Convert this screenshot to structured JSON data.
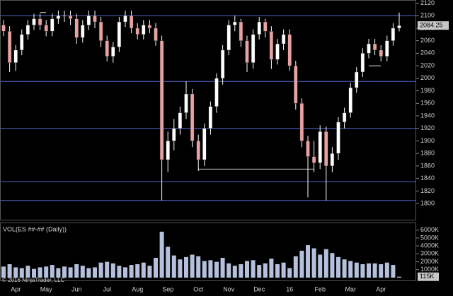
{
  "chart_data": [
    {
      "type": "candlestick",
      "categories": [
        null,
        null,
        "Apr",
        null,
        null,
        null,
        null,
        "May",
        null,
        null,
        null,
        null,
        "Jun",
        null,
        null,
        null,
        null,
        "Jul",
        null,
        null,
        null,
        null,
        "Aug",
        null,
        null,
        null,
        null,
        "Sep",
        null,
        null,
        null,
        null,
        "Oct",
        null,
        null,
        null,
        null,
        "Nov",
        null,
        null,
        null,
        null,
        "Dec",
        null,
        null,
        null,
        null,
        "16",
        null,
        null,
        null,
        null,
        "Feb",
        null,
        null,
        null,
        null,
        "Mar",
        null,
        null,
        null,
        null,
        "Apr",
        null,
        null,
        null
      ],
      "open": [
        2085,
        2075,
        2025,
        2045,
        2070,
        2085,
        2095,
        2085,
        2075,
        2095,
        2100,
        2100,
        2095,
        2065,
        2085,
        2100,
        2090,
        2060,
        2035,
        2050,
        2090,
        2100,
        2080,
        2070,
        2085,
        2080,
        2060,
        1870,
        1900,
        1920,
        1945,
        1975,
        1900,
        1870,
        1920,
        1955,
        2000,
        2045,
        2085,
        2090,
        2060,
        2025,
        2070,
        2090,
        2075,
        2030,
        2055,
        2070,
        2020,
        1960,
        1900,
        1875,
        1865,
        1915,
        1860,
        1880,
        1930,
        1945,
        1985,
        2010,
        2040,
        2055,
        2045,
        2035,
        2060,
        2080
      ],
      "high": [
        2093,
        2083,
        2053,
        2078,
        2093,
        2103,
        2103,
        2093,
        2103,
        2108,
        2108,
        2108,
        2103,
        2093,
        2108,
        2108,
        2098,
        2068,
        2058,
        2098,
        2108,
        2108,
        2088,
        2093,
        2093,
        2088,
        2068,
        1915,
        1935,
        1955,
        1995,
        1983,
        1910,
        1928,
        1963,
        2008,
        2053,
        2093,
        2100,
        2095,
        2068,
        2078,
        2098,
        2095,
        2083,
        2063,
        2078,
        2078,
        2028,
        1968,
        1908,
        1900,
        1925,
        1923,
        1890,
        1938,
        1953,
        1993,
        2018,
        2048,
        2063,
        2063,
        2053,
        2068,
        2088,
        2105
      ],
      "low": [
        2067,
        2010,
        2012,
        2037,
        2062,
        2077,
        2077,
        2067,
        2067,
        2087,
        2090,
        2085,
        2055,
        2057,
        2077,
        2080,
        2050,
        2027,
        2025,
        2042,
        2082,
        2072,
        2062,
        2062,
        2072,
        2052,
        1805,
        1850,
        1885,
        1910,
        1935,
        1890,
        1852,
        1860,
        1910,
        1945,
        1990,
        2037,
        2075,
        2050,
        2010,
        2015,
        2062,
        2065,
        2015,
        2022,
        2045,
        2012,
        1950,
        1890,
        1810,
        1850,
        1855,
        1805,
        1850,
        1870,
        1920,
        1937,
        1977,
        2002,
        2032,
        2037,
        2027,
        2027,
        2052,
        2075
      ],
      "close": [
        2075,
        2025,
        2045,
        2070,
        2085,
        2095,
        2085,
        2075,
        2095,
        2100,
        2100,
        2095,
        2065,
        2085,
        2100,
        2090,
        2060,
        2035,
        2050,
        2090,
        2100,
        2080,
        2070,
        2085,
        2080,
        2060,
        1870,
        1900,
        1920,
        1945,
        1975,
        1900,
        1870,
        1920,
        1955,
        2000,
        2045,
        2085,
        2090,
        2060,
        2025,
        2070,
        2090,
        2075,
        2030,
        2055,
        2070,
        2020,
        1960,
        1900,
        1875,
        1865,
        1915,
        1860,
        1880,
        1930,
        1945,
        1985,
        2010,
        2040,
        2055,
        2045,
        2035,
        2060,
        2080,
        2084.25
      ],
      "up_color": "#ffffff",
      "down_color": "#e8a2a2",
      "wick_color": "#ffffff",
      "hlines": [
        2100,
        1995,
        1920,
        1835,
        1805
      ],
      "hline_color": "#5566cc",
      "levels": [
        {
          "value": 2105,
          "from": 6,
          "to": 7
        },
        {
          "value": 1855,
          "from": 32,
          "to": 51
        },
        {
          "value": 2020,
          "from": 60,
          "to": 62
        }
      ],
      "level_color": "#dddddd",
      "ylim": [
        1790,
        2125
      ],
      "yticks": [
        1800,
        1820,
        1840,
        1860,
        1880,
        1900,
        1920,
        1940,
        1960,
        1980,
        2000,
        2020,
        2040,
        2060,
        2080,
        2100,
        2120
      ]
    },
    {
      "type": "bar",
      "title": "VOL(ES ##-## (Daily))",
      "values": [
        1400000,
        1700000,
        1300000,
        1200000,
        1500000,
        1100000,
        1300000,
        1400000,
        1600000,
        1200000,
        1400000,
        1300000,
        1700000,
        1500000,
        1200000,
        1300000,
        1900000,
        2000000,
        1800000,
        1500000,
        1300000,
        1600000,
        1700000,
        1900000,
        1500000,
        2500000,
        5800000,
        3900000,
        2800000,
        2300000,
        2600000,
        2900000,
        2700000,
        2100000,
        2200000,
        2000000,
        2500000,
        1800000,
        1500000,
        1700000,
        2100000,
        2200000,
        1600000,
        1800000,
        2400000,
        1700000,
        1900000,
        1200000,
        2700000,
        3400000,
        4100000,
        3700000,
        2900000,
        3600000,
        3100000,
        2600000,
        2300000,
        2100000,
        1900000,
        1700000,
        1800000,
        1800000,
        1700000,
        1900000,
        1600000,
        115000
      ],
      "value_labels": [
        null,
        null,
        null,
        null,
        null,
        null,
        null,
        null,
        null,
        null,
        null,
        null,
        null,
        null,
        null,
        null,
        null,
        null,
        null,
        null,
        null,
        null,
        null,
        null,
        null,
        null,
        null,
        null,
        null,
        null,
        null,
        null,
        null,
        null,
        null,
        null,
        null,
        null,
        null,
        null,
        null,
        null,
        null,
        null,
        null,
        null,
        null,
        null,
        null,
        null,
        null,
        null,
        null,
        null,
        null,
        null,
        null,
        null,
        null,
        null,
        null,
        null,
        null,
        null,
        null,
        "115K"
      ],
      "color": "#b4c0dc",
      "ylim": [
        0,
        6600000
      ],
      "yticks": [
        {
          "value": 1000000,
          "label": "1000K"
        },
        {
          "value": 2000000,
          "label": "2000K"
        },
        {
          "value": 3000000,
          "label": "3000K"
        },
        {
          "value": 4000000,
          "label": "4000K"
        },
        {
          "value": 5000000,
          "label": "5000K"
        },
        {
          "value": 6000000,
          "label": "6000K"
        }
      ]
    }
  ],
  "footer": "© 2016 NinjaTrader, LLC"
}
